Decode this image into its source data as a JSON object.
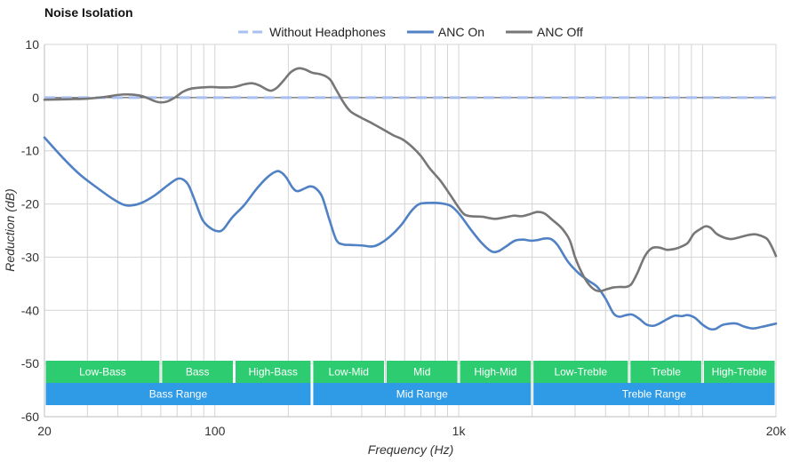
{
  "chart_data": {
    "type": "line",
    "title": "Noise Isolation",
    "xlabel": "Frequency (Hz)",
    "ylabel": "Reduction (dB)",
    "x_scale": "log",
    "xlim": [
      20,
      20000
    ],
    "ylim": [
      -60,
      10
    ],
    "grid": true,
    "legend_position": "top-center",
    "x_ticks": [
      {
        "value": 20,
        "label": "20"
      },
      {
        "value": 100,
        "label": "100"
      },
      {
        "value": 1000,
        "label": "1k"
      },
      {
        "value": 20000,
        "label": "20k"
      }
    ],
    "y_ticks": [
      {
        "value": 10,
        "label": "10"
      },
      {
        "value": 0,
        "label": "0"
      },
      {
        "value": -10,
        "label": "-10"
      },
      {
        "value": -20,
        "label": "-20"
      },
      {
        "value": -30,
        "label": "-30"
      },
      {
        "value": -40,
        "label": "-40"
      },
      {
        "value": -50,
        "label": "-50"
      },
      {
        "value": -60,
        "label": "-60"
      }
    ],
    "series": [
      {
        "name": "Without Headphones",
        "color": "#a9bff2",
        "dashed": true,
        "points": [
          [
            20,
            0
          ],
          [
            20000,
            0
          ]
        ]
      },
      {
        "name": "ANC On",
        "color": "#4f81c4",
        "dashed": false,
        "points": [
          [
            20,
            -7.5
          ],
          [
            24,
            -11.5
          ],
          [
            28,
            -14.5
          ],
          [
            33,
            -17.0
          ],
          [
            38,
            -19.0
          ],
          [
            42,
            -20.1
          ],
          [
            45,
            -20.3
          ],
          [
            50,
            -19.8
          ],
          [
            57,
            -18.3
          ],
          [
            64,
            -16.5
          ],
          [
            70,
            -15.3
          ],
          [
            74,
            -15.4
          ],
          [
            78,
            -16.5
          ],
          [
            83,
            -19.5
          ],
          [
            89,
            -23.0
          ],
          [
            95,
            -24.4
          ],
          [
            102,
            -25.1
          ],
          [
            108,
            -24.8
          ],
          [
            118,
            -22.5
          ],
          [
            132,
            -20.2
          ],
          [
            148,
            -17.2
          ],
          [
            164,
            -15.0
          ],
          [
            178,
            -13.9
          ],
          [
            186,
            -14.0
          ],
          [
            196,
            -15.0
          ],
          [
            208,
            -16.9
          ],
          [
            218,
            -17.6
          ],
          [
            233,
            -17.1
          ],
          [
            245,
            -16.7
          ],
          [
            258,
            -17.0
          ],
          [
            275,
            -18.6
          ],
          [
            295,
            -23.0
          ],
          [
            315,
            -26.8
          ],
          [
            335,
            -27.6
          ],
          [
            360,
            -27.7
          ],
          [
            400,
            -27.8
          ],
          [
            440,
            -28.0
          ],
          [
            470,
            -27.6
          ],
          [
            520,
            -26.2
          ],
          [
            580,
            -24.0
          ],
          [
            640,
            -21.3
          ],
          [
            690,
            -20.0
          ],
          [
            760,
            -19.8
          ],
          [
            850,
            -19.9
          ],
          [
            930,
            -20.4
          ],
          [
            1010,
            -22.0
          ],
          [
            1120,
            -24.8
          ],
          [
            1240,
            -27.3
          ],
          [
            1360,
            -28.9
          ],
          [
            1450,
            -28.9
          ],
          [
            1550,
            -28.1
          ],
          [
            1700,
            -26.9
          ],
          [
            1840,
            -26.7
          ],
          [
            1960,
            -26.9
          ],
          [
            2100,
            -26.8
          ],
          [
            2250,
            -26.5
          ],
          [
            2390,
            -26.6
          ],
          [
            2550,
            -27.8
          ],
          [
            2800,
            -30.8
          ],
          [
            3100,
            -33.0
          ],
          [
            3400,
            -34.4
          ],
          [
            3700,
            -35.6
          ],
          [
            4000,
            -37.8
          ],
          [
            4300,
            -40.5
          ],
          [
            4550,
            -41.2
          ],
          [
            4850,
            -40.9
          ],
          [
            5150,
            -40.8
          ],
          [
            5500,
            -41.6
          ],
          [
            5900,
            -42.7
          ],
          [
            6300,
            -42.9
          ],
          [
            6700,
            -42.4
          ],
          [
            7200,
            -41.6
          ],
          [
            7700,
            -41.0
          ],
          [
            8200,
            -41.1
          ],
          [
            8700,
            -40.9
          ],
          [
            9300,
            -41.4
          ],
          [
            10000,
            -42.7
          ],
          [
            10700,
            -43.5
          ],
          [
            11300,
            -43.5
          ],
          [
            12000,
            -42.8
          ],
          [
            12900,
            -42.5
          ],
          [
            13800,
            -42.5
          ],
          [
            14700,
            -43.0
          ],
          [
            16000,
            -43.4
          ],
          [
            17500,
            -43.1
          ],
          [
            20000,
            -42.5
          ]
        ]
      },
      {
        "name": "ANC Off",
        "color": "#777777",
        "dashed": false,
        "points": [
          [
            20,
            -0.4
          ],
          [
            25,
            -0.3
          ],
          [
            30,
            -0.2
          ],
          [
            35,
            0.1
          ],
          [
            40,
            0.5
          ],
          [
            44,
            0.6
          ],
          [
            49,
            0.4
          ],
          [
            53,
            -0.1
          ],
          [
            57,
            -0.7
          ],
          [
            60,
            -0.9
          ],
          [
            64,
            -0.7
          ],
          [
            69,
            0.1
          ],
          [
            74,
            1.1
          ],
          [
            80,
            1.7
          ],
          [
            88,
            1.9
          ],
          [
            97,
            2.0
          ],
          [
            107,
            1.9
          ],
          [
            120,
            2.0
          ],
          [
            132,
            2.5
          ],
          [
            142,
            2.7
          ],
          [
            152,
            2.3
          ],
          [
            162,
            1.6
          ],
          [
            170,
            1.3
          ],
          [
            180,
            1.9
          ],
          [
            192,
            3.3
          ],
          [
            205,
            4.8
          ],
          [
            220,
            5.5
          ],
          [
            234,
            5.3
          ],
          [
            250,
            4.7
          ],
          [
            270,
            4.4
          ],
          [
            285,
            4.0
          ],
          [
            298,
            3.3
          ],
          [
            315,
            1.4
          ],
          [
            338,
            -1.0
          ],
          [
            360,
            -2.6
          ],
          [
            395,
            -3.7
          ],
          [
            440,
            -4.8
          ],
          [
            490,
            -6.0
          ],
          [
            540,
            -7.1
          ],
          [
            590,
            -7.9
          ],
          [
            645,
            -9.3
          ],
          [
            700,
            -11.0
          ],
          [
            760,
            -13.3
          ],
          [
            840,
            -15.6
          ],
          [
            920,
            -18.2
          ],
          [
            990,
            -20.4
          ],
          [
            1050,
            -21.9
          ],
          [
            1120,
            -22.3
          ],
          [
            1250,
            -22.4
          ],
          [
            1400,
            -22.8
          ],
          [
            1550,
            -22.5
          ],
          [
            1680,
            -22.2
          ],
          [
            1820,
            -22.3
          ],
          [
            1960,
            -21.9
          ],
          [
            2100,
            -21.5
          ],
          [
            2250,
            -21.8
          ],
          [
            2420,
            -23.0
          ],
          [
            2650,
            -24.6
          ],
          [
            2850,
            -26.8
          ],
          [
            3000,
            -30.0
          ],
          [
            3200,
            -33.0
          ],
          [
            3400,
            -35.0
          ],
          [
            3600,
            -36.1
          ],
          [
            3800,
            -36.4
          ],
          [
            4000,
            -36.1
          ],
          [
            4300,
            -35.7
          ],
          [
            4600,
            -35.6
          ],
          [
            4850,
            -35.6
          ],
          [
            5100,
            -35.1
          ],
          [
            5400,
            -33.0
          ],
          [
            5800,
            -29.8
          ],
          [
            6200,
            -28.3
          ],
          [
            6650,
            -28.2
          ],
          [
            7100,
            -28.6
          ],
          [
            7600,
            -28.5
          ],
          [
            8100,
            -28.1
          ],
          [
            8700,
            -27.3
          ],
          [
            9200,
            -25.6
          ],
          [
            9800,
            -24.7
          ],
          [
            10300,
            -24.2
          ],
          [
            10800,
            -24.5
          ],
          [
            11400,
            -25.6
          ],
          [
            12200,
            -26.3
          ],
          [
            13100,
            -26.6
          ],
          [
            14100,
            -26.3
          ],
          [
            15200,
            -25.9
          ],
          [
            16300,
            -25.7
          ],
          [
            17400,
            -26.0
          ],
          [
            18400,
            -26.6
          ],
          [
            19200,
            -28.0
          ],
          [
            20000,
            -29.8
          ]
        ]
      }
    ],
    "frequency_bands": [
      {
        "label": "Low-Bass",
        "from": 20,
        "to": 60
      },
      {
        "label": "Bass",
        "from": 60,
        "to": 120
      },
      {
        "label": "High-Bass",
        "from": 120,
        "to": 250
      },
      {
        "label": "Low-Mid",
        "from": 250,
        "to": 500
      },
      {
        "label": "Mid",
        "from": 500,
        "to": 1000
      },
      {
        "label": "High-Mid",
        "from": 1000,
        "to": 2000
      },
      {
        "label": "Low-Treble",
        "from": 2000,
        "to": 5000
      },
      {
        "label": "Treble",
        "from": 5000,
        "to": 10000
      },
      {
        "label": "High-Treble",
        "from": 10000,
        "to": 20000
      }
    ],
    "frequency_ranges": [
      {
        "label": "Bass Range",
        "from": 20,
        "to": 250
      },
      {
        "label": "Mid Range",
        "from": 250,
        "to": 2000
      },
      {
        "label": "Treble Range",
        "from": 2000,
        "to": 20000
      }
    ],
    "band_color": "#2ecc71",
    "range_color": "#2f9be6"
  }
}
